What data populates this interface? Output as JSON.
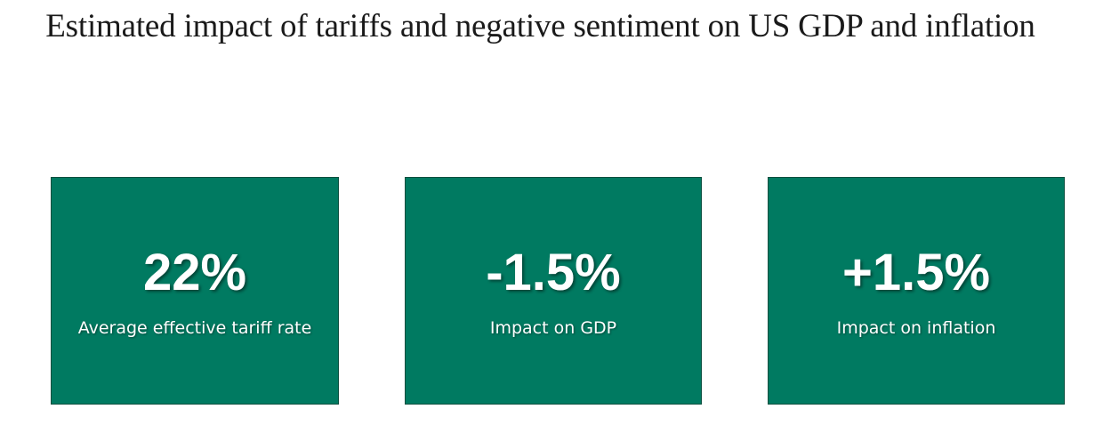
{
  "title": "Estimated impact of tariffs and negative sentiment on US GDP and inflation",
  "colors": {
    "card_background": "#007a61",
    "text": "#ffffff"
  },
  "cards": [
    {
      "value": "22%",
      "label": "Average effective tariff rate"
    },
    {
      "value": "-1.5%",
      "label": "Impact on GDP"
    },
    {
      "value": "+1.5%",
      "label": "Impact on inflation"
    }
  ]
}
